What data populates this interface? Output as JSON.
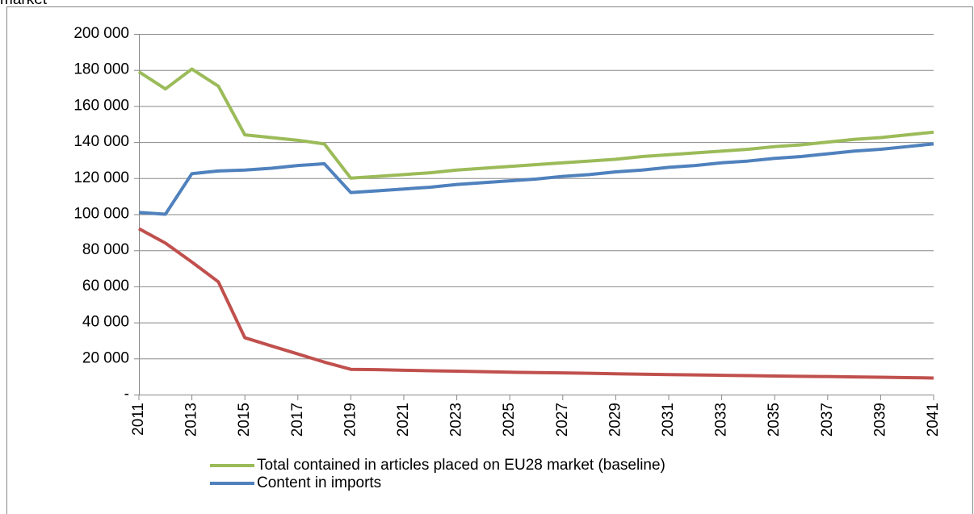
{
  "chart_data": {
    "type": "line",
    "title": "market",
    "x": [
      2011,
      2012,
      2013,
      2014,
      2015,
      2016,
      2017,
      2018,
      2019,
      2020,
      2021,
      2022,
      2023,
      2024,
      2025,
      2026,
      2027,
      2028,
      2029,
      2030,
      2031,
      2032,
      2033,
      2034,
      2035,
      2036,
      2037,
      2038,
      2039,
      2040,
      2041
    ],
    "xlim": [
      2011,
      2041
    ],
    "xticks": [
      2011,
      2013,
      2015,
      2017,
      2019,
      2021,
      2023,
      2025,
      2027,
      2029,
      2031,
      2033,
      2035,
      2037,
      2039,
      2041
    ],
    "ylim": [
      0,
      200000
    ],
    "yticks": [
      {
        "value": 0,
        "label": "-"
      },
      {
        "value": 20000,
        "label": "20 000"
      },
      {
        "value": 40000,
        "label": "40 000"
      },
      {
        "value": 60000,
        "label": "60 000"
      },
      {
        "value": 80000,
        "label": "80 000"
      },
      {
        "value": 100000,
        "label": "100 000"
      },
      {
        "value": 120000,
        "label": "120 000"
      },
      {
        "value": 140000,
        "label": "140 000"
      },
      {
        "value": 160000,
        "label": "160 000"
      },
      {
        "value": 180000,
        "label": "180 000"
      },
      {
        "value": 200000,
        "label": "200 000"
      }
    ],
    "grid": true,
    "series": [
      {
        "name": "Total contained in articles placed on EU28 market (baseline)",
        "color": "#9bbb59",
        "values": [
          179000,
          169500,
          180500,
          171000,
          144000,
          142500,
          141000,
          139000,
          120000,
          121000,
          122000,
          123000,
          124500,
          125500,
          126500,
          127500,
          128500,
          129500,
          130500,
          132000,
          133000,
          134000,
          135000,
          136000,
          137500,
          138500,
          140000,
          141500,
          142500,
          144000,
          145500
        ]
      },
      {
        "name": "Content in imports",
        "color": "#4f81bd",
        "values": [
          101000,
          100000,
          122500,
          124000,
          124500,
          125500,
          127000,
          128000,
          112000,
          113000,
          114000,
          115000,
          116500,
          117500,
          118500,
          119500,
          121000,
          122000,
          123500,
          124500,
          126000,
          127000,
          128500,
          129500,
          131000,
          132000,
          133500,
          135000,
          136000,
          137500,
          139000
        ]
      },
      {
        "color": "#c0504d",
        "values": [
          92000,
          84000,
          73500,
          62500,
          31500,
          27000,
          22500,
          18000,
          14000,
          13800,
          13500,
          13200,
          13000,
          12700,
          12400,
          12200,
          12000,
          11800,
          11500,
          11300,
          11100,
          10900,
          10700,
          10500,
          10300,
          10100,
          10000,
          9800,
          9600,
          9400,
          9200
        ]
      }
    ]
  }
}
